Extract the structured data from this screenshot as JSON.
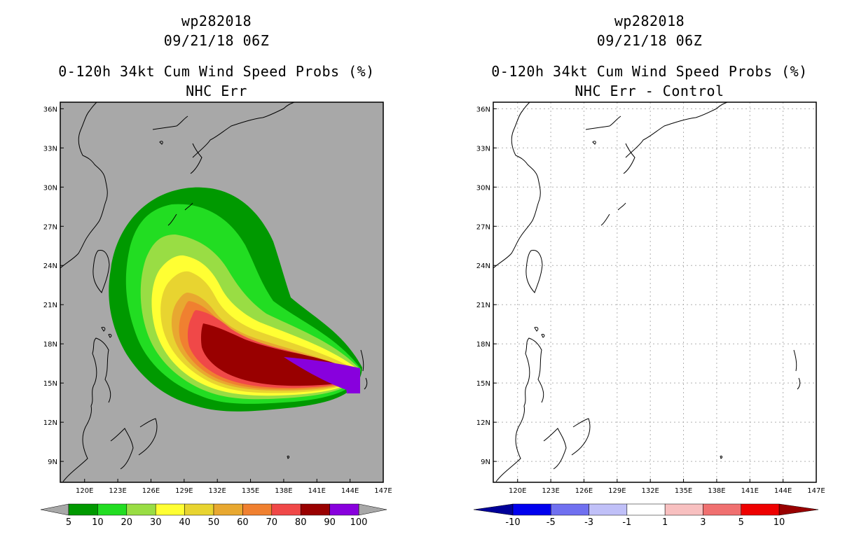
{
  "left_panel": {
    "title_line1": "wp282018",
    "title_line2": "09/21/18 06Z",
    "title_line3": "0-120h 34kt Cum Wind Speed Probs (%)",
    "title_line4": "NHC Err",
    "background_color": "#a8a8a8",
    "colorbar": {
      "colors": [
        "#009900",
        "#22dd22",
        "#99dd44",
        "#ffff33",
        "#e8d430",
        "#e8a830",
        "#f08030",
        "#f04848",
        "#990000",
        "#8800dd"
      ],
      "labels": [
        "5",
        "10",
        "20",
        "30",
        "40",
        "50",
        "60",
        "70",
        "80",
        "90",
        "100"
      ]
    }
  },
  "right_panel": {
    "title_line1": "wp282018",
    "title_line2": "09/21/18 06Z",
    "title_line3": "0-120h 34kt Cum Wind Speed Probs (%)",
    "title_line4": "NHC Err - Control",
    "background_color": "#ffffff",
    "colorbar": {
      "colors": [
        "#0000ee",
        "#7070f0",
        "#c0c0f8",
        "#ffffff",
        "#f8c0c0",
        "#f07070",
        "#ee0000"
      ],
      "end_colors": [
        "#000099",
        "#990000"
      ],
      "labels": [
        "-10",
        "-5",
        "-3",
        "-1",
        "1",
        "3",
        "5",
        "10"
      ]
    }
  },
  "axes": {
    "lon_labels": [
      "120E",
      "123E",
      "126E",
      "129E",
      "132E",
      "135E",
      "138E",
      "141E",
      "144E",
      "147E"
    ],
    "lat_labels": [
      "36N",
      "33N",
      "30N",
      "27N",
      "24N",
      "21N",
      "18N",
      "15N",
      "12N",
      "9N"
    ],
    "lon_values": [
      120,
      123,
      126,
      129,
      132,
      135,
      138,
      141,
      144,
      147
    ],
    "lat_values": [
      36,
      33,
      30,
      27,
      24,
      21,
      18,
      15,
      12,
      9
    ]
  }
}
